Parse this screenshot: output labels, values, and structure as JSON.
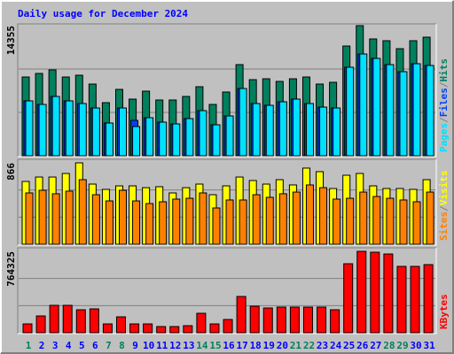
{
  "chart_data": [
    {
      "type": "bar",
      "title": "Daily usage for December 2024",
      "title_color": "#0000ff",
      "ylim": [
        0,
        14355
      ],
      "yticks": [
        14355
      ],
      "legend_separator": "/",
      "series": [
        {
          "name": "Hits",
          "color": "#00805c",
          "values": [
            8691,
            9082,
            9472,
            8691,
            8886,
            7910,
            5859,
            7324,
            6250,
            7129,
            6152,
            6152,
            6543,
            7617,
            5664,
            7031,
            10058,
            8398,
            8496,
            8203,
            8496,
            8691,
            7910,
            8105,
            12109,
            14355,
            12890,
            12695,
            11816,
            12695,
            13085
          ]
        },
        {
          "name": "Files",
          "color": "#0040ff",
          "values": [
            6055,
            5664,
            6543,
            6055,
            5762,
            5273,
            3613,
            5273,
            3906,
            4199,
            3711,
            3516,
            4101,
            4980,
            3418,
            4394,
            7422,
            5762,
            5566,
            5957,
            6250,
            5762,
            5371,
            5273,
            9765,
            11230,
            10742,
            10058,
            9277,
            10156,
            9961
          ]
        },
        {
          "name": "Pages",
          "color": "#00e0ff",
          "values": [
            6055,
            5664,
            6543,
            6055,
            5762,
            5273,
            3613,
            5273,
            3223,
            4199,
            3711,
            3516,
            4101,
            4980,
            3418,
            4394,
            7422,
            5762,
            5566,
            5957,
            6250,
            5762,
            5371,
            5273,
            9765,
            11230,
            10742,
            10058,
            9277,
            10156,
            9961
          ]
        }
      ]
    },
    {
      "type": "bar",
      "ylim": [
        0,
        866
      ],
      "yticks": [
        866
      ],
      "legend_separator": "/",
      "series": [
        {
          "name": "Visits",
          "color": "#ffff00",
          "values": [
            668,
            715,
            715,
            753,
            866,
            640,
            584,
            621,
            621,
            602,
            612,
            546,
            602,
            640,
            527,
            621,
            715,
            678,
            640,
            687,
            631,
            810,
            772,
            593,
            734,
            753,
            621,
            593,
            593,
            584,
            687
          ]
        },
        {
          "name": "Sites",
          "color": "#ff8000",
          "values": [
            546,
            574,
            537,
            565,
            687,
            527,
            461,
            574,
            461,
            433,
            452,
            480,
            489,
            546,
            386,
            471,
            471,
            527,
            499,
            537,
            555,
            631,
            602,
            480,
            489,
            555,
            508,
            489,
            471,
            452,
            555
          ]
        }
      ]
    },
    {
      "type": "bar",
      "ylim": [
        0,
        764325
      ],
      "yticks": [
        764325
      ],
      "categories": [
        "1",
        "2",
        "3",
        "4",
        "5",
        "6",
        "7",
        "8",
        "9",
        "10",
        "11",
        "12",
        "13",
        "14",
        "15",
        "16",
        "17",
        "18",
        "19",
        "20",
        "21",
        "22",
        "23",
        "24",
        "25",
        "26",
        "27",
        "28",
        "29",
        "30",
        "31"
      ],
      "category_colors": [
        "#00805c",
        "#0000ff",
        "#0000ff",
        "#0000ff",
        "#0000ff",
        "#0000ff",
        "#00805c",
        "#00805c",
        "#0000ff",
        "#0000ff",
        "#0000ff",
        "#0000ff",
        "#0000ff",
        "#00805c",
        "#00805c",
        "#0000ff",
        "#0000ff",
        "#0000ff",
        "#0000ff",
        "#0000ff",
        "#00805c",
        "#00805c",
        "#0000ff",
        "#0000ff",
        "#0000ff",
        "#0000ff",
        "#0000ff",
        "#00805c",
        "#00805c",
        "#0000ff",
        "#0000ff"
      ],
      "series": [
        {
          "name": "KBytes",
          "color": "#ff0000",
          "values": [
            83079,
            157850,
            257544,
            257544,
            216004,
            224312,
            83079,
            149542,
            83079,
            83079,
            58155,
            58155,
            66463,
            182774,
            83079,
            124618,
            340623,
            249236,
            232620,
            240928,
            240928,
            240928,
            240928,
            216004,
            648015,
            764325,
            756017,
            739401,
            623091,
            623091,
            639707
          ]
        }
      ]
    }
  ]
}
